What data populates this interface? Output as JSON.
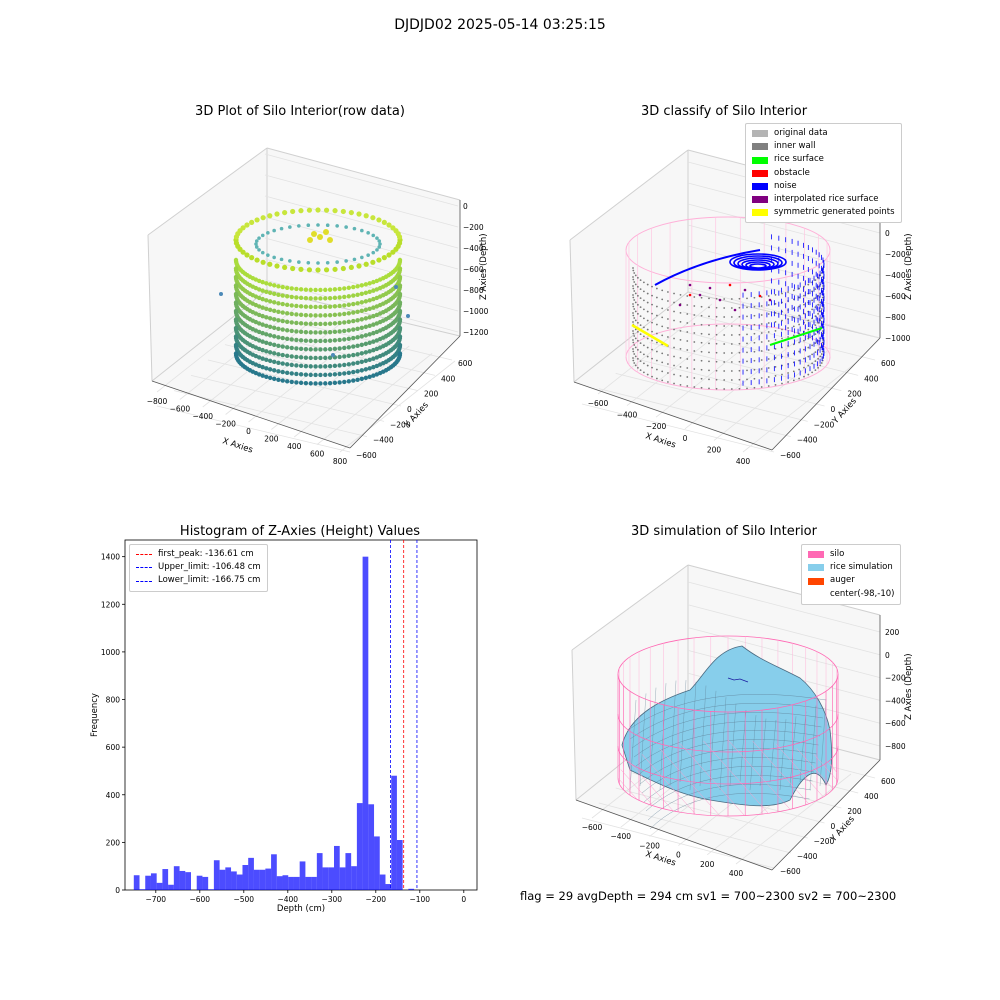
{
  "suptitle": "DJDJD02 2025-05-14 03:25:15",
  "plots": {
    "raw": {
      "title": "3D Plot of Silo Interior(row data)",
      "xlabel": "X Axies",
      "ylabel": "Y Axies",
      "zlabel": "Z Axies (Depth)",
      "xticks": [
        "−800",
        "−600",
        "−400",
        "−200",
        "0",
        "200",
        "400",
        "600",
        "800"
      ],
      "yticks": [
        "−600",
        "−400",
        "−200",
        "0",
        "200",
        "400",
        "600"
      ],
      "zticks": [
        "0",
        "−200",
        "−400",
        "−600",
        "−800",
        "−1000",
        "−1200"
      ]
    },
    "classify": {
      "title": "3D classify of Silo Interior",
      "xlabel": "X Axies",
      "ylabel": "Y Axies",
      "zlabel": "Z Axies (Depth)",
      "xticks": [
        "−600",
        "−400",
        "−200",
        "0",
        "200",
        "400"
      ],
      "yticks": [
        "−600",
        "−400",
        "−200",
        "0",
        "200",
        "400",
        "600"
      ],
      "zticks": [
        "200",
        "0",
        "−200",
        "−400",
        "−600",
        "−800",
        "−1000"
      ],
      "legend": [
        {
          "label": "original data",
          "color": "#b4b4b4"
        },
        {
          "label": "inner wall",
          "color": "#808080"
        },
        {
          "label": "rice surface",
          "color": "#00ff00"
        },
        {
          "label": "obstacle",
          "color": "#ff0000"
        },
        {
          "label": "noise",
          "color": "#0000ff"
        },
        {
          "label": "interpolated rice surface",
          "color": "#800080"
        },
        {
          "label": "symmetric generated points",
          "color": "#ffff00"
        }
      ]
    },
    "simulation": {
      "title": "3D simulation of Silo Interior",
      "xlabel": "X Axies",
      "ylabel": "Y Axies",
      "zlabel": "Z Axies (Depth)",
      "xticks": [
        "−600",
        "−400",
        "−200",
        "0",
        "200",
        "400"
      ],
      "yticks": [
        "−600",
        "−400",
        "−200",
        "0",
        "200",
        "400",
        "600"
      ],
      "zticks": [
        "200",
        "0",
        "−200",
        "−400",
        "−600",
        "−800"
      ],
      "legend": [
        {
          "label": "silo",
          "color": "#ff69b4"
        },
        {
          "label": "rice simulation",
          "color": "#87ceeb"
        },
        {
          "label": "auger",
          "color": "#ff4500"
        },
        {
          "label": "center(-98,-10)",
          "color": ""
        }
      ]
    }
  },
  "footer": "flag = 29   avgDepth = 294 cm   sv1 = 700~2300   sv2 = 700~2300",
  "chart_data": {
    "type": "bar",
    "title": "Histogram of Z-Axies (Height) Values",
    "xlabel": "Depth (cm)",
    "ylabel": "Frequency",
    "xlim": [
      -770,
      30
    ],
    "ylim": [
      0,
      1470
    ],
    "xticks": [
      -700,
      -600,
      -500,
      -400,
      -300,
      -200,
      -100,
      0
    ],
    "yticks": [
      0,
      200,
      400,
      600,
      800,
      1000,
      1200,
      1400
    ],
    "bar_color": "#0000ff",
    "bins": [
      {
        "x0": -750,
        "x1": -737,
        "v": 62
      },
      {
        "x0": -737,
        "x1": -724,
        "v": 3
      },
      {
        "x0": -724,
        "x1": -711,
        "v": 60
      },
      {
        "x0": -711,
        "x1": -698,
        "v": 70
      },
      {
        "x0": -698,
        "x1": -685,
        "v": 30
      },
      {
        "x0": -685,
        "x1": -672,
        "v": 88
      },
      {
        "x0": -672,
        "x1": -659,
        "v": 22
      },
      {
        "x0": -659,
        "x1": -646,
        "v": 100
      },
      {
        "x0": -646,
        "x1": -633,
        "v": 80
      },
      {
        "x0": -633,
        "x1": -620,
        "v": 75
      },
      {
        "x0": -620,
        "x1": -607,
        "v": 0
      },
      {
        "x0": -607,
        "x1": -594,
        "v": 60
      },
      {
        "x0": -594,
        "x1": -581,
        "v": 55
      },
      {
        "x0": -581,
        "x1": -568,
        "v": 3
      },
      {
        "x0": -568,
        "x1": -555,
        "v": 125
      },
      {
        "x0": -555,
        "x1": -542,
        "v": 85
      },
      {
        "x0": -542,
        "x1": -529,
        "v": 95
      },
      {
        "x0": -529,
        "x1": -516,
        "v": 78
      },
      {
        "x0": -516,
        "x1": -503,
        "v": 65
      },
      {
        "x0": -503,
        "x1": -490,
        "v": 105
      },
      {
        "x0": -490,
        "x1": -477,
        "v": 135
      },
      {
        "x0": -477,
        "x1": -464,
        "v": 85
      },
      {
        "x0": -464,
        "x1": -451,
        "v": 85
      },
      {
        "x0": -451,
        "x1": -438,
        "v": 90
      },
      {
        "x0": -438,
        "x1": -425,
        "v": 150
      },
      {
        "x0": -425,
        "x1": -412,
        "v": 58
      },
      {
        "x0": -412,
        "x1": -399,
        "v": 62
      },
      {
        "x0": -399,
        "x1": -386,
        "v": 55
      },
      {
        "x0": -386,
        "x1": -373,
        "v": 55
      },
      {
        "x0": -373,
        "x1": -360,
        "v": 120
      },
      {
        "x0": -360,
        "x1": -347,
        "v": 55
      },
      {
        "x0": -347,
        "x1": -334,
        "v": 55
      },
      {
        "x0": -334,
        "x1": -321,
        "v": 155
      },
      {
        "x0": -321,
        "x1": -308,
        "v": 95
      },
      {
        "x0": -308,
        "x1": -295,
        "v": 95
      },
      {
        "x0": -295,
        "x1": -282,
        "v": 185
      },
      {
        "x0": -282,
        "x1": -269,
        "v": 95
      },
      {
        "x0": -269,
        "x1": -256,
        "v": 155
      },
      {
        "x0": -256,
        "x1": -243,
        "v": 100
      },
      {
        "x0": -243,
        "x1": -230,
        "v": 365
      },
      {
        "x0": -230,
        "x1": -217,
        "v": 1400
      },
      {
        "x0": -217,
        "x1": -204,
        "v": 360
      },
      {
        "x0": -204,
        "x1": -191,
        "v": 225
      },
      {
        "x0": -191,
        "x1": -178,
        "v": 65
      },
      {
        "x0": -178,
        "x1": -165,
        "v": 25
      },
      {
        "x0": -165,
        "x1": -152,
        "v": 480
      },
      {
        "x0": -152,
        "x1": -139,
        "v": 210
      },
      {
        "x0": -139,
        "x1": -126,
        "v": 0
      },
      {
        "x0": -126,
        "x1": -113,
        "v": 5
      }
    ],
    "vlines": [
      {
        "label": "first_peak: -136.61 cm",
        "x": -136.61,
        "color": "#ff0000"
      },
      {
        "label": "Upper_limit: -106.48 cm",
        "x": -106.48,
        "color": "#0000ff"
      },
      {
        "label": "Lower_limit: -166.75 cm",
        "x": -166.75,
        "color": "#0000ff"
      }
    ]
  }
}
